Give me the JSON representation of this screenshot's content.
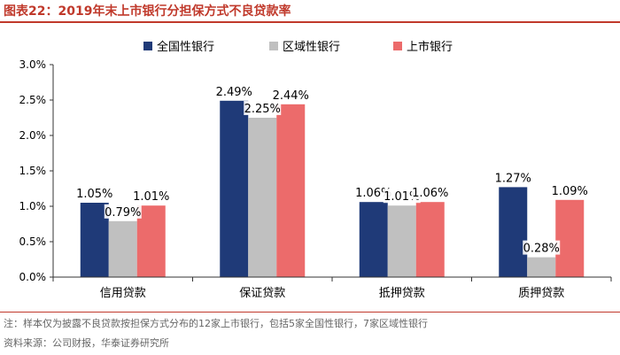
{
  "header": {
    "title": "图表22：2019年末上市银行分担保方式不良贷款率"
  },
  "chart_data": {
    "type": "bar",
    "categories": [
      "信用贷款",
      "保证贷款",
      "抵押贷款",
      "质押贷款"
    ],
    "series": [
      {
        "name": "全国性银行",
        "values": [
          1.05,
          2.49,
          1.06,
          1.27
        ],
        "labels": [
          "1.05%",
          "2.49%",
          "1.06%",
          "1.27%"
        ],
        "color": "#1f3a78"
      },
      {
        "name": "区域性银行",
        "values": [
          0.79,
          2.25,
          1.01,
          0.28
        ],
        "labels": [
          "0.79%",
          "2.25%",
          "1.01%",
          "0.28%"
        ],
        "color": "#c0c0c0"
      },
      {
        "name": "上市银行",
        "values": [
          1.01,
          2.44,
          1.06,
          1.09
        ],
        "labels": [
          "1.01%",
          "2.44%",
          "1.06%",
          "1.09%"
        ],
        "color": "#ec6b6b"
      }
    ],
    "yticks": [
      "0.0%",
      "0.5%",
      "1.0%",
      "1.5%",
      "2.0%",
      "2.5%",
      "3.0%"
    ],
    "ylim": [
      0,
      3.0
    ],
    "legend_position": "top",
    "grid": false
  },
  "footer": {
    "note": "注：样本仅为披露不良贷款按担保方式分布的12家上市银行，包括5家全国性银行，7家区域性银行",
    "source": "资料来源：公司财报，华泰证券研究所"
  }
}
